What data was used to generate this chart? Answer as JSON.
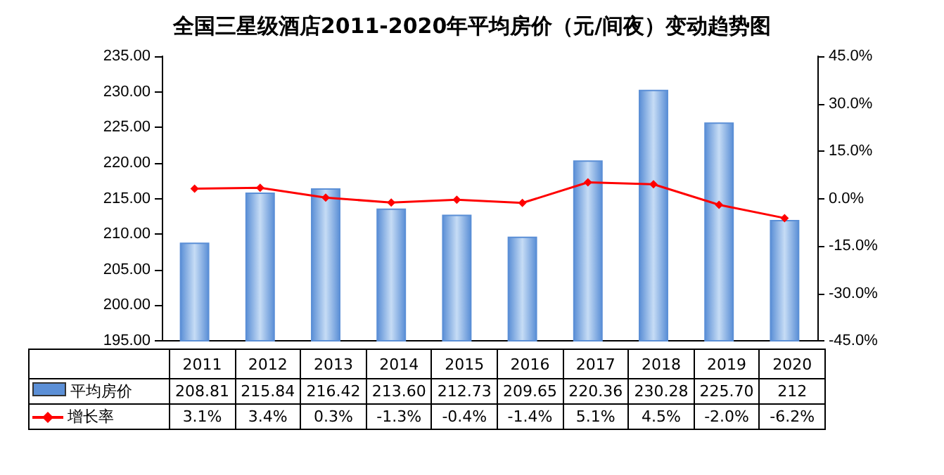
{
  "chart_data": {
    "type": "bar",
    "title": "全国三星级酒店2011-2020年平均房价（元/间夜）变动趋势图",
    "categories": [
      "2011",
      "2012",
      "2013",
      "2014",
      "2015",
      "2016",
      "2017",
      "2018",
      "2019",
      "2020"
    ],
    "series": [
      {
        "name": "平均房价",
        "color": "#5b8fd6",
        "values": [
          208.81,
          215.84,
          216.42,
          213.6,
          212.73,
          209.65,
          220.36,
          230.28,
          225.7,
          212
        ],
        "value_labels": [
          "208.81",
          "215.84",
          "216.42",
          "213.60",
          "212.73",
          "209.65",
          "220.36",
          "230.28",
          "225.70",
          "212"
        ]
      },
      {
        "name": "增长率",
        "type": "line",
        "axis": "y2",
        "color": "#ff0000",
        "marker": "diamond",
        "values": [
          3.1,
          3.4,
          0.3,
          -1.3,
          -0.4,
          -1.4,
          5.1,
          4.5,
          -2.0,
          -6.2
        ],
        "value_labels": [
          "3.1%",
          "3.4%",
          "0.3%",
          "-1.3%",
          "-0.4%",
          "-1.4%",
          "5.1%",
          "4.5%",
          "-2.0%",
          "-6.2%"
        ]
      }
    ],
    "ylim": [
      195,
      235
    ],
    "yticks": [
      {
        "value": 195,
        "label": "195.00"
      },
      {
        "value": 200,
        "label": "200.00"
      },
      {
        "value": 205,
        "label": "205.00"
      },
      {
        "value": 210,
        "label": "210.00"
      },
      {
        "value": 215,
        "label": "215.00"
      },
      {
        "value": 220,
        "label": "220.00"
      },
      {
        "value": 225,
        "label": "225.00"
      },
      {
        "value": 230,
        "label": "230.00"
      },
      {
        "value": 235,
        "label": "235.00"
      }
    ],
    "y2lim": [
      -45,
      45
    ],
    "y2ticks": [
      {
        "value": -45,
        "label": "-45.0%"
      },
      {
        "value": -30,
        "label": "-30.0%"
      },
      {
        "value": -15,
        "label": "-15.0%"
      },
      {
        "value": 0,
        "label": "0.0%"
      },
      {
        "value": 15,
        "label": "15.0%"
      },
      {
        "value": 30,
        "label": "30.0%"
      },
      {
        "value": 45,
        "label": "45.0%"
      }
    ],
    "legend": "bottom left"
  }
}
